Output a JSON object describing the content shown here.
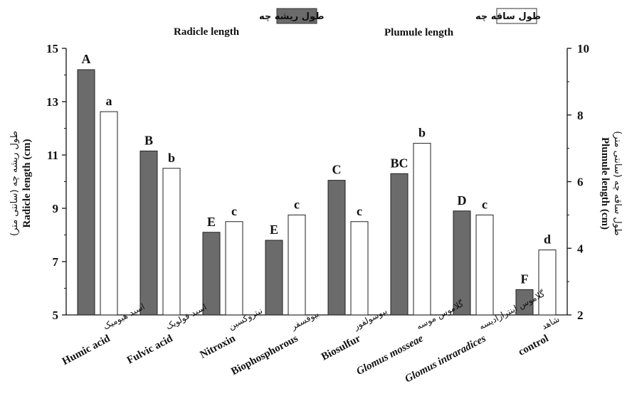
{
  "chart_data": {
    "type": "bar",
    "categories": [
      {
        "fa": "اسید هیومیک",
        "en": "Humic acid",
        "italic": false
      },
      {
        "fa": "اسید فولویک",
        "en": "Fulvic acid",
        "italic": false
      },
      {
        "fa": "نیتروکسین",
        "en": "Nitroxin",
        "italic": false
      },
      {
        "fa": "بیوفسفر",
        "en": "Biophosphorous",
        "italic": false
      },
      {
        "fa": "بیوسولفور",
        "en": "Biosulfur",
        "italic": false
      },
      {
        "fa": "گلاموس موسه",
        "en": "Glomus mosseae",
        "italic": true
      },
      {
        "fa": "گلاموس اینترارادیسه",
        "en": "Glomus intraradices",
        "italic": true
      },
      {
        "fa": "شاهد",
        "en": "control",
        "italic": false
      }
    ],
    "series": [
      {
        "key": "radicle",
        "legend_fa": "طول ریشه چه",
        "legend_en": "Radicle length",
        "axis": "left",
        "color": "#6b6b6b",
        "values": [
          14.2,
          11.15,
          8.1,
          7.8,
          10.05,
          10.3,
          8.9,
          5.95
        ],
        "letters": [
          "A",
          "B",
          "E",
          "E",
          "C",
          "BC",
          "D",
          "F"
        ]
      },
      {
        "key": "plumule",
        "legend_fa": "طول ساقه چه",
        "legend_en": "Plumule length",
        "axis": "right",
        "color": "#ffffff",
        "values": [
          8.1,
          6.4,
          4.8,
          5.0,
          4.8,
          7.15,
          5.0,
          3.95
        ],
        "letters": [
          "a",
          "b",
          "c",
          "c",
          "c",
          "b",
          "c",
          "d"
        ]
      }
    ],
    "left_axis": {
      "label_fa": "طول ریشه چه (سانتی متر)",
      "label_en": "Radicle length (cm)",
      "range": [
        5,
        15
      ],
      "ticks": [
        "5",
        "7",
        "9",
        "11",
        "13",
        "15"
      ]
    },
    "right_axis": {
      "label_fa": "طول ساقه چه (سانتی متر)",
      "label_en": "Plumule length (cm)",
      "range": [
        2,
        10
      ],
      "ticks": [
        "2",
        "4",
        "6",
        "8",
        "10"
      ]
    },
    "legend_position": "top",
    "grid": false
  }
}
